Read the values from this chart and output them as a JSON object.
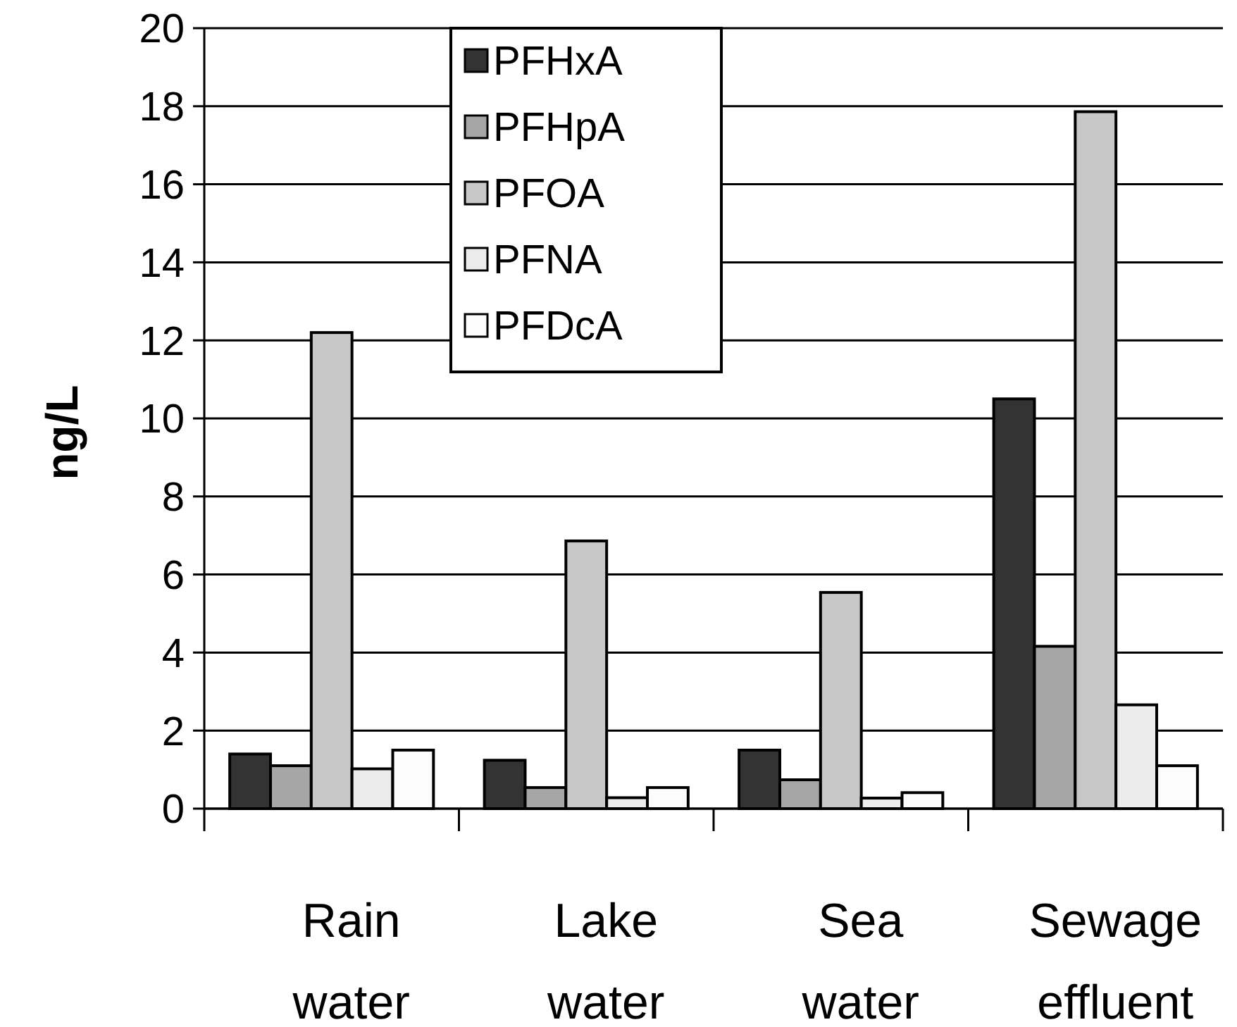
{
  "chart_data": {
    "type": "bar",
    "ylabel": "ng/L",
    "categories": [
      "Rain water",
      "Lake water",
      "Sea water",
      "Sewage effluent"
    ],
    "series": [
      {
        "name": "PFHxA",
        "color": "#333333",
        "values": [
          1.4,
          1.24,
          1.5,
          10.5
        ]
      },
      {
        "name": "PFHpA",
        "color": "#a6a6a6",
        "values": [
          1.1,
          0.54,
          0.74,
          4.16
        ]
      },
      {
        "name": "PFOA",
        "color": "#c8c8c8",
        "values": [
          12.2,
          6.86,
          5.54,
          17.86
        ]
      },
      {
        "name": "PFNA",
        "color": "#ececec",
        "values": [
          1.02,
          0.28,
          0.27,
          2.66
        ]
      },
      {
        "name": "PFDcA",
        "color": "#fcfcfc",
        "values": [
          1.5,
          0.54,
          0.41,
          1.1
        ]
      }
    ],
    "ylim": [
      0,
      20
    ],
    "yticks": [
      0,
      2,
      4,
      6,
      8,
      10,
      12,
      14,
      16,
      18,
      20
    ],
    "grid": "y",
    "legend": "top"
  }
}
